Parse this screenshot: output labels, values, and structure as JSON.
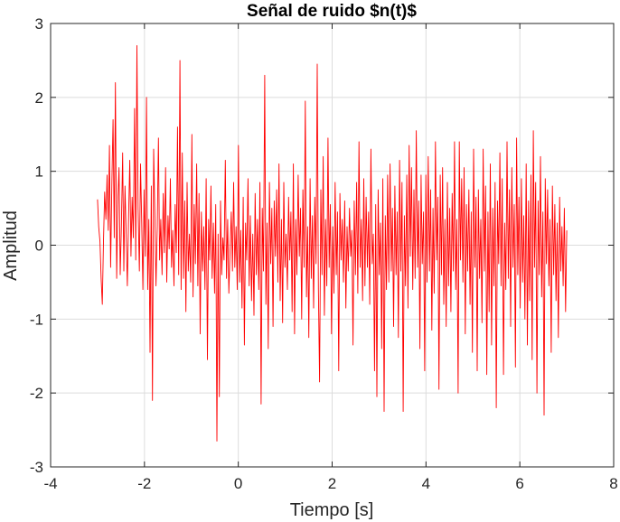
{
  "chart_data": {
    "type": "line",
    "title": "Señal de ruido $n(t)$",
    "xlabel": "Tiempo [s]",
    "ylabel": "Amplitud",
    "xlim": [
      -4,
      8
    ],
    "ylim": [
      -3,
      3
    ],
    "xticks": [
      -4,
      -2,
      0,
      2,
      4,
      6,
      8
    ],
    "yticks": [
      -3,
      -2,
      -1,
      0,
      1,
      2,
      3
    ],
    "xtick_labels": [
      "-4",
      "-2",
      "0",
      "2",
      "4",
      "6",
      "8"
    ],
    "ytick_labels": [
      "-3",
      "-2",
      "-1",
      "0",
      "1",
      "2",
      "3"
    ],
    "grid": true,
    "colors": {
      "line": "#ff0000",
      "grid": "#dcdcdc",
      "axes": "#262626"
    },
    "series": [
      {
        "x_start": -3,
        "x_end": 7,
        "values": [
          0.62,
          0.25,
          0.05,
          -0.45,
          -0.8,
          0.05,
          0.72,
          0.35,
          0.95,
          0.2,
          1.35,
          -0.3,
          0.85,
          1.7,
          0.1,
          2.2,
          -0.45,
          0.6,
          1.05,
          -0.4,
          0.25,
          1.25,
          -0.35,
          0.8,
          0.15,
          -0.55,
          0.4,
          1.15,
          -0.15,
          0.65,
          0.1,
          1.85,
          -0.2,
          2.7,
          0.5,
          -0.35,
          1.1,
          0.3,
          -0.6,
          0.75,
          -0.15,
          2.0,
          -0.6,
          0.35,
          -1.45,
          0.8,
          -2.1,
          1.3,
          0.45,
          -0.55,
          0.25,
          1.45,
          -0.2,
          0.35,
          -0.4,
          0.7,
          -0.1,
          1.05,
          -0.5,
          0.4,
          -0.05,
          0.9,
          -0.3,
          0.2,
          -0.55,
          0.55,
          -0.1,
          1.6,
          -0.4,
          2.5,
          -0.6,
          1.25,
          -0.45,
          0.6,
          -0.9,
          0.85,
          -0.35,
          0.15,
          -0.5,
          1.5,
          -0.7,
          0.55,
          -0.25,
          1.1,
          -0.55,
          0.7,
          -1.2,
          0.45,
          -0.35,
          0.25,
          -0.6,
          0.9,
          -1.55,
          0.35,
          -0.2,
          0.8,
          -0.45,
          0.3,
          -0.65,
          0.55,
          -2.65,
          0.15,
          -2.05,
          0.6,
          -0.4,
          0.1,
          -0.2,
          1.15,
          -0.45,
          0.35,
          -0.65,
          -0.05,
          0.45,
          -0.35,
          0.85,
          -0.3,
          0.25,
          -0.6,
          1.35,
          -0.5,
          0.2,
          -0.85,
          0.65,
          -1.35,
          0.3,
          -0.2,
          0.9,
          -0.55,
          0.4,
          -0.75,
          0.15,
          -0.95,
          0.7,
          -0.4,
          0.35,
          -0.6,
          0.85,
          -2.15,
          0.5,
          -0.35,
          2.3,
          -0.8,
          0.3,
          -1.4,
          0.85,
          -0.25,
          0.5,
          -1.1,
          0.6,
          -0.15,
          0.75,
          -0.5,
          1.1,
          -0.75,
          0.35,
          -1.05,
          0.85,
          -0.3,
          0.15,
          -0.6,
          0.65,
          -0.2,
          0.45,
          -0.9,
          1.1,
          -1.2,
          0.35,
          -0.4,
          0.95,
          -0.15,
          0.5,
          -1.0,
          0.75,
          -0.3,
          1.95,
          -0.7,
          0.25,
          -1.25,
          0.9,
          -0.45,
          0.4,
          -0.85,
          0.65,
          -0.25,
          2.45,
          -0.6,
          -1.85,
          0.75,
          -0.4,
          1.2,
          -0.95,
          0.35,
          -0.55,
          1.45,
          -0.3,
          0.55,
          -1.2,
          0.25,
          -0.65,
          0.85,
          -0.4,
          0.45,
          -1.7,
          0.7,
          -0.2,
          0.35,
          -0.5,
          0.6,
          -0.85,
          0.25,
          -0.35,
          0.5,
          -0.15,
          0.2,
          -1.35,
          0.6,
          -0.4,
          0.85,
          -0.65,
          1.4,
          -0.3,
          0.35,
          -0.75,
          0.9,
          -0.55,
          0.65,
          -0.3,
          0.45,
          -0.8,
          1.3,
          -0.25,
          0.15,
          -1.7,
          0.55,
          -2.05,
          0.75,
          -0.4,
          0.3,
          -1.4,
          0.9,
          -2.25,
          0.4,
          -0.6,
          0.95,
          -0.5,
          1.1,
          -0.35,
          0.5,
          -1.1,
          0.8,
          -0.4,
          0.45,
          -1.25,
          1.15,
          -0.35,
          0.85,
          -2.25,
          0.4,
          -0.55,
          0.95,
          -0.85,
          1.35,
          -0.15,
          1.05,
          -0.6,
          0.75,
          -0.45,
          1.55,
          -0.3,
          0.6,
          -1.4,
          0.95,
          -0.25,
          0.45,
          -1.7,
          0.95,
          -0.5,
          1.2,
          -0.35,
          0.75,
          -1.15,
          0.5,
          -0.65,
          1.4,
          -0.2,
          0.65,
          -1.95,
          0.95,
          -0.4,
          1.05,
          -0.8,
          0.35,
          -1.1,
          0.85,
          -0.55,
          0.5,
          -0.9,
          0.7,
          -0.35,
          1.4,
          -0.6,
          0.35,
          -2.0,
          1.4,
          -0.2,
          0.9,
          -0.5,
          1.05,
          -1.2,
          0.55,
          -0.35,
          0.75,
          -0.8,
          0.45,
          -1.45,
          1.3,
          -0.3,
          0.65,
          -1.7,
          0.75,
          -0.45,
          0.35,
          -1.05,
          1.3,
          -0.35,
          0.8,
          -1.75,
          0.45,
          -0.9,
          1.1,
          -1.35,
          0.5,
          -0.55,
          0.85,
          -2.2,
          0.6,
          -0.25,
          1.25,
          -0.55,
          0.9,
          -1.75,
          0.3,
          -0.6,
          1.4,
          -0.45,
          0.75,
          -1.1,
          1.05,
          -0.3,
          0.55,
          -1.65,
          1.45,
          -0.4,
          0.65,
          -0.85,
          0.9,
          -0.5,
          0.4,
          -1.0,
          1.1,
          -1.35,
          0.6,
          -0.75,
          0.95,
          -1.55,
          1.55,
          -0.3,
          0.85,
          -2.0,
          0.6,
          -0.4,
          1.2,
          -0.7,
          0.45,
          -2.3,
          0.9,
          -0.25,
          0.75,
          -0.55,
          0.35,
          -1.45,
          0.8,
          -0.4,
          0.55,
          -0.75,
          0.3,
          -1.25,
          0.65,
          -0.35,
          0.25,
          -0.55,
          0.5,
          -0.9,
          0.2
        ]
      }
    ]
  }
}
